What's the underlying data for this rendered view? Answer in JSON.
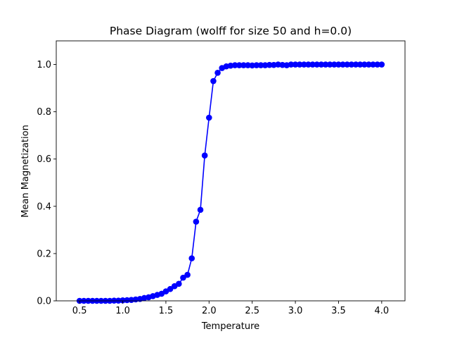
{
  "chart_data": {
    "type": "line",
    "title": "Phase Diagram (wolff for size 50 and h=0.0)",
    "xlabel": "Temperature",
    "ylabel": "Mean Magnetization",
    "xlim": [
      0.23,
      4.27
    ],
    "ylim": [
      0.0,
      1.1
    ],
    "xticks": [
      0.5,
      1.0,
      1.5,
      2.0,
      2.5,
      3.0,
      3.5,
      4.0
    ],
    "xtick_labels": [
      "0.5",
      "1.0",
      "1.5",
      "2.0",
      "2.5",
      "3.0",
      "3.5",
      "4.0"
    ],
    "yticks": [
      0.0,
      0.2,
      0.4,
      0.6,
      0.8,
      1.0
    ],
    "ytick_labels": [
      "0.0",
      "0.2",
      "0.4",
      "0.6",
      "0.8",
      "1.0"
    ],
    "grid": false,
    "series": [
      {
        "color": "#0000ff",
        "marker": "circle",
        "x": [
          0.5,
          0.55,
          0.6,
          0.65,
          0.7,
          0.75,
          0.8,
          0.85,
          0.9,
          0.95,
          1.0,
          1.05,
          1.1,
          1.15,
          1.2,
          1.25,
          1.3,
          1.35,
          1.4,
          1.45,
          1.5,
          1.55,
          1.6,
          1.65,
          1.7,
          1.75,
          1.8,
          1.85,
          1.9,
          1.95,
          2.0,
          2.05,
          2.1,
          2.15,
          2.2,
          2.25,
          2.3,
          2.35,
          2.4,
          2.45,
          2.5,
          2.55,
          2.6,
          2.65,
          2.7,
          2.75,
          2.8,
          2.85,
          2.9,
          2.95,
          3.0,
          3.05,
          3.1,
          3.15,
          3.2,
          3.25,
          3.3,
          3.35,
          3.4,
          3.45,
          3.5,
          3.55,
          3.6,
          3.65,
          3.7,
          3.75,
          3.8,
          3.85,
          3.9,
          3.95,
          4.0
        ],
        "y": [
          0.0,
          0.0,
          0.0,
          0.0,
          0.0,
          0.0,
          0.0,
          0.0,
          0.001,
          0.001,
          0.002,
          0.003,
          0.004,
          0.006,
          0.008,
          0.012,
          0.015,
          0.02,
          0.025,
          0.03,
          0.04,
          0.05,
          0.062,
          0.072,
          0.098,
          0.11,
          0.18,
          0.335,
          0.385,
          0.615,
          0.775,
          0.93,
          0.965,
          0.985,
          0.992,
          0.995,
          0.997,
          0.997,
          0.997,
          0.997,
          0.996,
          0.997,
          0.997,
          0.997,
          0.998,
          0.998,
          1.0,
          0.998,
          0.997,
          1.0,
          1.0,
          1.0,
          1.0,
          1.0,
          1.0,
          1.0,
          1.0,
          1.0,
          1.0,
          1.0,
          1.0,
          1.0,
          1.0,
          1.0,
          1.0,
          1.0,
          1.0,
          1.0,
          1.0,
          1.0,
          1.0
        ]
      }
    ]
  }
}
